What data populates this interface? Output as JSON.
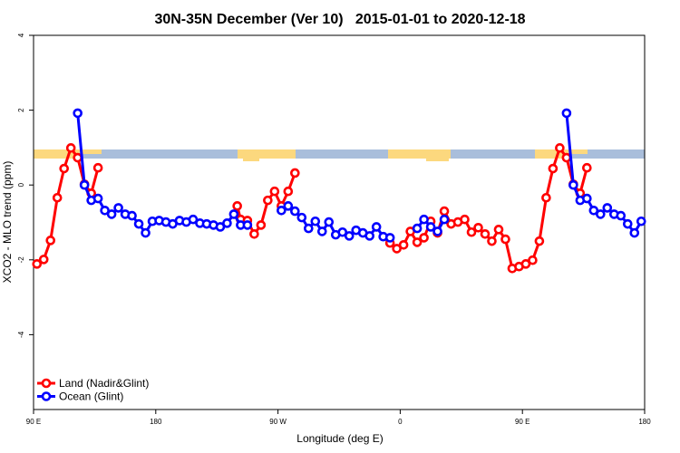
{
  "chart_data": {
    "type": "line",
    "title": "30N-35N December (Ver 10)   2015-01-01 to 2020-12-18",
    "x_label": "Longitude (deg E)",
    "y_label": "XCO2 - MLO trend (ppm)",
    "xlim": [
      90,
      540
    ],
    "xticks": [
      {
        "value": 90,
        "label": "90 E"
      },
      {
        "value": 180,
        "label": "180"
      },
      {
        "value": 270,
        "label": "90 W"
      },
      {
        "value": 360,
        "label": "0"
      },
      {
        "value": 450,
        "label": "90 E"
      },
      {
        "value": 540,
        "label": "180"
      }
    ],
    "ylim": [
      -6,
      4
    ],
    "yticks": [
      4,
      2,
      0,
      -2,
      -4
    ],
    "legend": "bottom-left",
    "series": [
      {
        "name": "Land (Nadir&Glint)",
        "color": "#ff0000",
        "x": [
          92.5,
          97.5,
          102.5,
          107.5,
          112.5,
          117.5,
          122.5,
          127.5,
          132.5,
          137.5,
          null,
          240,
          242.5,
          247.5,
          252.5,
          257.5,
          262.5,
          267.5,
          272.5,
          277.5,
          282.5,
          null,
          352.5,
          357.5,
          362.5,
          367.5,
          372.5,
          377.5,
          382.5,
          387.5,
          392.5,
          397.5,
          402.5,
          407.5,
          412.5,
          417.5,
          422.5,
          427.5,
          432.5,
          437.5,
          442.5,
          447.5,
          452.5,
          457.5,
          462.5,
          467.5,
          472.5,
          477.5,
          482.5,
          487.5,
          492.5,
          497.5
        ],
        "values": [
          -2.11,
          -1.99,
          -1.48,
          -0.34,
          0.44,
          0.99,
          0.73,
          0.02,
          -0.22,
          0.46,
          null,
          -0.56,
          -0.92,
          -0.95,
          -1.31,
          -1.07,
          -0.41,
          -0.17,
          -0.56,
          -0.17,
          0.32,
          null,
          -1.55,
          -1.7,
          -1.6,
          -1.24,
          -1.53,
          -1.41,
          -0.97,
          -1.28,
          -0.7,
          -1.04,
          -0.99,
          -0.92,
          -1.26,
          -1.14,
          -1.31,
          -1.5,
          -1.19,
          -1.45,
          -2.23,
          -2.18,
          -2.11,
          -2.01,
          -1.5,
          -0.34,
          0.44,
          0.99,
          0.73,
          0.02,
          -0.22,
          0.46
        ]
      },
      {
        "name": "Ocean (Glint)",
        "color": "#0000ff",
        "x": [
          122.5,
          127.5,
          132.5,
          137.5,
          142.5,
          147.5,
          152.5,
          157.5,
          162.5,
          167.5,
          172.5,
          177.5,
          182.5,
          187.5,
          192.5,
          197.5,
          202.5,
          207.5,
          212.5,
          217.5,
          222.5,
          227.5,
          232.5,
          237.5,
          242.5,
          247.5,
          null,
          272.5,
          277.5,
          282.5,
          287.5,
          292.5,
          297.5,
          302.5,
          307.5,
          312.5,
          317.5,
          322.5,
          327.5,
          332.5,
          337.5,
          342.5,
          347.5,
          352.5,
          null,
          372.5,
          377.5,
          382.5,
          387.5,
          392.5,
          null,
          482.5,
          487.5,
          492.5,
          497.5,
          502.5,
          507.5,
          512.5,
          517.5,
          522.5,
          527.5,
          532.5,
          537.5
        ],
        "values": [
          1.92,
          0,
          -0.41,
          -0.36,
          -0.68,
          -0.78,
          -0.61,
          -0.78,
          -0.82,
          -1.04,
          -1.28,
          -0.97,
          -0.95,
          -0.99,
          -1.04,
          -0.95,
          -0.99,
          -0.92,
          -1.02,
          -1.04,
          -1.07,
          -1.12,
          -1.02,
          -0.78,
          -1.07,
          -1.07,
          null,
          -0.68,
          -0.56,
          -0.7,
          -0.87,
          -1.16,
          -0.97,
          -1.24,
          -0.99,
          -1.33,
          -1.26,
          -1.36,
          -1.21,
          -1.28,
          -1.36,
          -1.12,
          -1.38,
          -1.41,
          null,
          -1.16,
          -0.92,
          -1.12,
          -1.24,
          -0.92,
          null,
          1.92,
          0,
          -0.41,
          -0.36,
          -0.68,
          -0.78,
          -0.61,
          -0.78,
          -0.82,
          -1.04,
          -1.28,
          -0.97
        ]
      }
    ]
  }
}
